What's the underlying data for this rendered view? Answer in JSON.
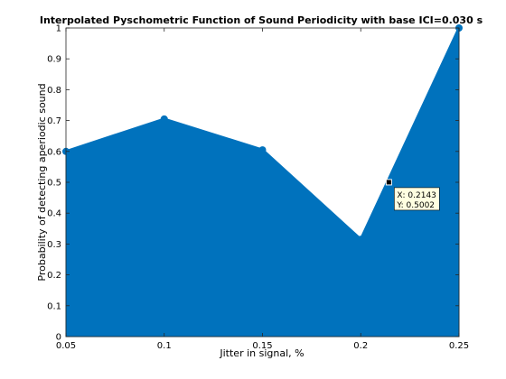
{
  "chart_data": {
    "type": "area",
    "title": "Interpolated Pyschometric Function of Sound Periodicity with base ICI=0.030 s",
    "xlabel": "Jitter in signal, %",
    "ylabel": "Probability of detecting aperiodic sound",
    "xlim": [
      0.05,
      0.25
    ],
    "ylim": [
      0,
      1
    ],
    "xticks": [
      0.05,
      0.1,
      0.15,
      0.2,
      0.25
    ],
    "xtick_labels": [
      "0.05",
      "0.1",
      "0.15",
      "0.2",
      "0.25"
    ],
    "yticks": [
      0,
      0.1,
      0.2,
      0.3,
      0.4,
      0.5,
      0.6,
      0.7,
      0.8,
      0.9,
      1
    ],
    "ytick_labels": [
      "0",
      "0.1",
      "0.2",
      "0.3",
      "0.4",
      "0.5",
      "0.6",
      "0.7",
      "0.8",
      "0.9",
      "1"
    ],
    "grid": false,
    "legend": "none",
    "fill_color": "#0072BD",
    "series": [
      {
        "x": [
          0.05,
          0.1,
          0.15,
          0.2,
          0.25
        ],
        "values": [
          0.6,
          0.705,
          0.605,
          0.315,
          1.0
        ]
      }
    ],
    "datatip": {
      "x": 0.2143,
      "y": 0.5002,
      "x_label": "X: 0.2143",
      "y_label": "Y: 0.5002"
    }
  }
}
